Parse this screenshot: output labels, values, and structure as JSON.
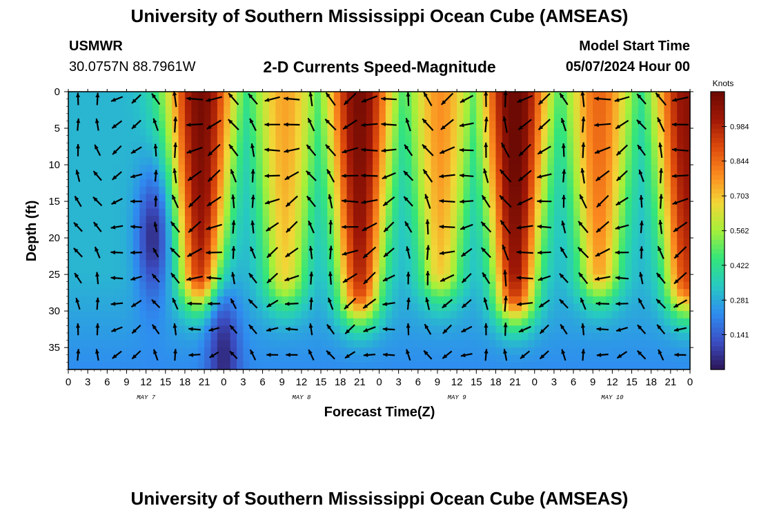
{
  "page": {
    "title_top": "University of Southern Mississippi Ocean Cube (AMSEAS)",
    "title_bottom": "University of Southern Mississippi Ocean Cube (AMSEAS)",
    "station_name": "USMWR",
    "station_coords": "30.0757N  88.7961W",
    "chart_title": "2-D Currents Speed-Magnitude",
    "model_start_label": "Model Start Time",
    "model_start_value": "05/07/2024 Hour 00"
  },
  "colors": {
    "colormap": [
      "#2c1457",
      "#3b4fc4",
      "#2f8cf0",
      "#27c9c2",
      "#34e57a",
      "#a6f03a",
      "#f2d637",
      "#fb8a1f",
      "#dd4a0c",
      "#9e1706",
      "#6c0a03"
    ],
    "arrow": "#000000"
  },
  "chart_data": {
    "type": "heatmap",
    "title": "2-D Currents Speed-Magnitude",
    "xlabel": "Forecast Time(Z)",
    "ylabel": "Depth (ft)",
    "x_unit": "hours from model start",
    "xlim": [
      0,
      96
    ],
    "ylim": [
      0,
      38
    ],
    "x_ticks": [
      0,
      3,
      6,
      9,
      12,
      15,
      18,
      21,
      24,
      27,
      30,
      33,
      36,
      39,
      42,
      45,
      48,
      51,
      54,
      57,
      60,
      63,
      66,
      69,
      72,
      75,
      78,
      81,
      84,
      87,
      90,
      93,
      96
    ],
    "x_tick_labels": [
      "0",
      "3",
      "6",
      "9",
      "12",
      "15",
      "18",
      "21",
      "0",
      "3",
      "6",
      "9",
      "12",
      "15",
      "18",
      "21",
      "0",
      "3",
      "6",
      "9",
      "12",
      "15",
      "18",
      "21",
      "0",
      "3",
      "6",
      "9",
      "12",
      "15",
      "18",
      "21",
      "0"
    ],
    "y_ticks": [
      0,
      5,
      10,
      15,
      20,
      25,
      30,
      35
    ],
    "y_tick_labels": [
      "0",
      "5",
      "10",
      "15",
      "20",
      "25",
      "30",
      "35"
    ],
    "day_labels": [
      {
        "x": 12,
        "label": "MAY 7"
      },
      {
        "x": 36,
        "label": "MAY 8"
      },
      {
        "x": 60,
        "label": "MAY 9"
      },
      {
        "x": 84,
        "label": "MAY 10"
      }
    ],
    "colorbar": {
      "label": "Knots",
      "min": 0.0,
      "max": 1.125,
      "ticks": [
        0.141,
        0.281,
        0.422,
        0.562,
        0.703,
        0.844,
        0.984
      ],
      "tick_labels": [
        "0.141",
        "0.281",
        "0.422",
        "0.562",
        "0.703",
        "0.844",
        "0.984"
      ]
    },
    "speed_maxima": [
      {
        "hour": 20.5,
        "peak_knots": 1.1,
        "bottom_depth_ft": 25
      },
      {
        "hour": 33.5,
        "peak_knots": 0.75,
        "bottom_depth_ft": 25
      },
      {
        "hour": 45.0,
        "peak_knots": 1.1,
        "bottom_depth_ft": 27
      },
      {
        "hour": 57.5,
        "peak_knots": 0.78,
        "bottom_depth_ft": 24
      },
      {
        "hour": 69.0,
        "peak_knots": 1.15,
        "bottom_depth_ft": 27
      },
      {
        "hour": 82.0,
        "peak_knots": 0.85,
        "bottom_depth_ft": 24
      },
      {
        "hour": 95.5,
        "peak_knots": 1.05,
        "bottom_depth_ft": 26
      }
    ],
    "speed_minima": [
      {
        "hour": 13,
        "depth_ft": 20,
        "knots": 0.05
      },
      {
        "hour": 24,
        "depth_ft": 36,
        "knots": 0.05
      }
    ]
  }
}
